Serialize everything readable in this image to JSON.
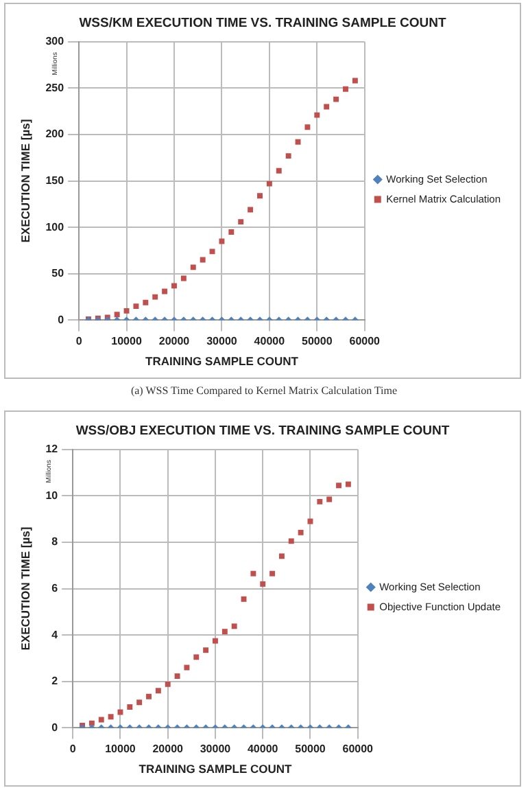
{
  "chart_data": [
    {
      "type": "scatter",
      "title": "WSS/KM EXECUTION TIME VS. TRAINING SAMPLE COUNT",
      "xlabel": "TRAINING SAMPLE COUNT",
      "ylabel": "EXECUTION TIME [µs]",
      "annotations": [
        "Millions",
        "(a) WSS Time Compared to Kernel Matrix Calculation Time"
      ],
      "x": [
        2000,
        4000,
        6000,
        8000,
        10000,
        12000,
        14000,
        16000,
        18000,
        20000,
        22000,
        24000,
        26000,
        28000,
        30000,
        32000,
        34000,
        36000,
        38000,
        40000,
        42000,
        44000,
        46000,
        48000,
        50000,
        52000,
        54000,
        56000,
        58000
      ],
      "series": [
        {
          "name": "Working Set Selection",
          "color": "#4f81bd",
          "marker": "diamond",
          "values": [
            0,
            0,
            0,
            0,
            0,
            0,
            0,
            0,
            0,
            0,
            0,
            0,
            0,
            0,
            0,
            0,
            0,
            0,
            0,
            0,
            0,
            0,
            0,
            0,
            0,
            0,
            0,
            0,
            0
          ]
        },
        {
          "name": "Kernel Matrix Calculation",
          "color": "#c0504d",
          "marker": "square",
          "values": [
            1,
            2,
            3,
            6,
            10,
            15,
            19,
            25,
            31,
            37,
            45,
            57,
            65,
            74,
            85,
            95,
            106,
            119,
            134,
            147,
            161,
            177,
            192,
            208,
            221,
            230,
            238,
            249,
            258
          ]
        }
      ],
      "xlim": [
        0,
        60000
      ],
      "xticks": [
        0,
        10000,
        20000,
        30000,
        40000,
        50000,
        60000
      ],
      "ylim": [
        0,
        300
      ],
      "yticks": [
        0,
        50,
        100,
        150,
        200,
        250,
        300
      ],
      "grid": true,
      "legend": "right"
    },
    {
      "type": "scatter",
      "title": "WSS/OBJ EXECUTION TIME VS. TRAINING SAMPLE COUNT",
      "xlabel": "TRAINING SAMPLE COUNT",
      "ylabel": "EXECUTION TIME [µs]",
      "annotations": [
        "Millions"
      ],
      "x": [
        2000,
        4000,
        6000,
        8000,
        10000,
        12000,
        14000,
        16000,
        18000,
        20000,
        22000,
        24000,
        26000,
        28000,
        30000,
        32000,
        34000,
        36000,
        38000,
        40000,
        42000,
        44000,
        46000,
        48000,
        50000,
        52000,
        54000,
        56000,
        58000
      ],
      "series": [
        {
          "name": "Working Set Selection",
          "color": "#4f81bd",
          "marker": "diamond",
          "values": [
            0,
            0,
            0,
            0,
            0,
            0,
            0,
            0,
            0,
            0,
            0,
            0,
            0,
            0,
            0,
            0,
            0,
            0,
            0,
            0,
            0,
            0,
            0,
            0,
            0,
            0,
            0,
            0,
            0
          ]
        },
        {
          "name": "Objective Function Update",
          "color": "#c0504d",
          "marker": "square",
          "values": [
            0.1,
            0.2,
            0.35,
            0.48,
            0.68,
            0.9,
            1.1,
            1.35,
            1.6,
            1.88,
            2.23,
            2.6,
            3.05,
            3.35,
            3.75,
            4.15,
            4.38,
            5.55,
            6.65,
            6.2,
            6.65,
            7.4,
            8.05,
            8.42,
            8.9,
            9.75,
            9.85,
            10.45,
            10.5
          ]
        }
      ],
      "xlim": [
        0,
        60000
      ],
      "xticks": [
        0,
        10000,
        20000,
        30000,
        40000,
        50000,
        60000
      ],
      "ylim": [
        0,
        12
      ],
      "yticks": [
        0,
        2,
        4,
        6,
        8,
        10,
        12
      ],
      "grid": true,
      "legend": "right"
    }
  ]
}
